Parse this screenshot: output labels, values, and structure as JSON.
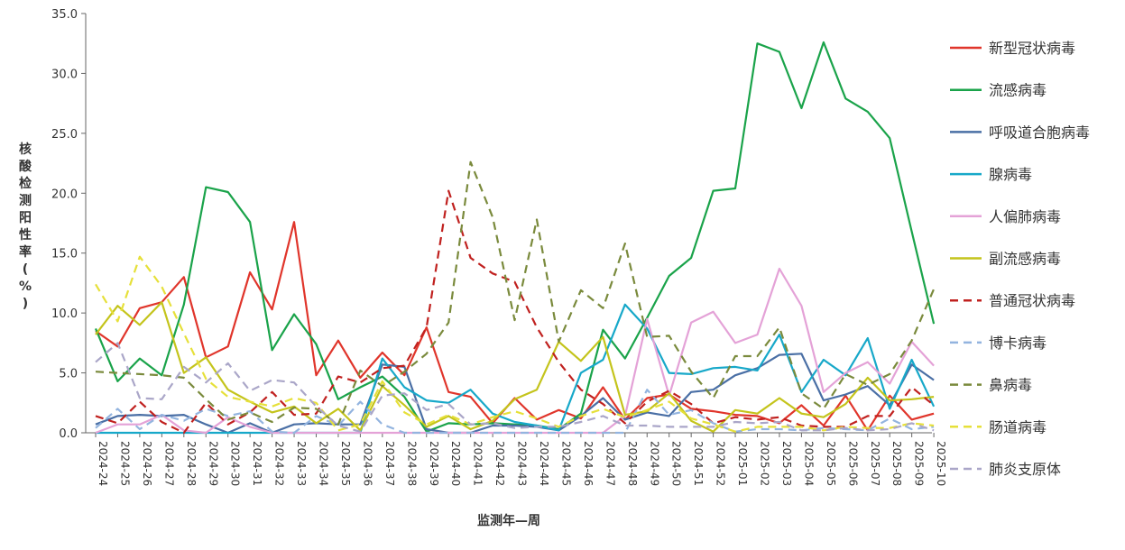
{
  "chart_data": {
    "type": "line",
    "title": "",
    "xlabel": "监测年—周",
    "ylabel": "核酸检测阳性率(%)",
    "ylim": [
      0,
      35
    ],
    "yticks": [
      "0.0",
      "5.0",
      "10.0",
      "15.0",
      "20.0",
      "25.0",
      "30.0",
      "35.0"
    ],
    "grid": false,
    "legend_position": "right",
    "categories": [
      "2024-24",
      "2024-25",
      "2024-26",
      "2024-27",
      "2024-28",
      "2024-29",
      "2024-30",
      "2024-31",
      "2024-32",
      "2024-33",
      "2024-34",
      "2024-35",
      "2024-36",
      "2024-37",
      "2024-38",
      "2024-39",
      "2024-40",
      "2024-41",
      "2024-42",
      "2024-43",
      "2024-44",
      "2024-45",
      "2024-46",
      "2024-47",
      "2024-48",
      "2024-49",
      "2024-50",
      "2024-51",
      "2024-52",
      "2025-01",
      "2025-02",
      "2025-03",
      "2025-04",
      "2025-05",
      "2025-06",
      "2025-07",
      "2025-08",
      "2025-09",
      "2025-10"
    ],
    "series": [
      {
        "name": "新型冠状病毒",
        "color": "#e0352b",
        "dash": "solid",
        "values": [
          8.5,
          7.2,
          10.4,
          10.9,
          13.0,
          6.3,
          7.2,
          13.4,
          10.3,
          17.6,
          4.8,
          7.7,
          4.6,
          6.7,
          4.8,
          8.8,
          3.4,
          3.0,
          0.8,
          2.9,
          1.1,
          1.9,
          1.2,
          3.8,
          1.1,
          2.9,
          3.2,
          2.0,
          1.8,
          1.5,
          1.4,
          0.8,
          2.3,
          0.6,
          3.1,
          0.2,
          3.1,
          1.1,
          1.6
        ]
      },
      {
        "name": "流感病毒",
        "color": "#1aa34a",
        "dash": "solid",
        "values": [
          8.7,
          4.3,
          6.2,
          4.8,
          10.7,
          20.5,
          20.1,
          17.6,
          6.9,
          9.9,
          7.4,
          2.8,
          3.8,
          4.7,
          3.0,
          0.1,
          0.8,
          0.7,
          0.8,
          0.7,
          0.6,
          0.3,
          1.6,
          8.6,
          6.2,
          9.6,
          13.1,
          14.6,
          20.2,
          20.4,
          32.5,
          31.8,
          27.1,
          32.6,
          27.9,
          26.8,
          24.6,
          16.8,
          9.1
        ]
      },
      {
        "name": "呼吸道合胞病毒",
        "color": "#4a6fa5",
        "dash": "solid",
        "values": [
          0.7,
          1.4,
          1.5,
          1.4,
          1.5,
          0.7,
          0.0,
          0.8,
          0.0,
          0.7,
          0.8,
          0.7,
          0.7,
          5.7,
          5.5,
          0.3,
          0.0,
          0.0,
          0.6,
          0.6,
          0.5,
          0.2,
          1.4,
          2.9,
          1.1,
          1.7,
          1.4,
          3.4,
          3.6,
          4.8,
          5.4,
          6.5,
          6.6,
          2.7,
          3.2,
          3.9,
          2.3,
          5.7,
          4.4
        ]
      },
      {
        "name": "腺病毒",
        "color": "#17a8c9",
        "dash": "solid",
        "values": [
          0.0,
          0.0,
          0.0,
          0.0,
          0.0,
          0.0,
          0.0,
          0.0,
          0.0,
          0.0,
          0.0,
          0.0,
          0.0,
          6.2,
          3.8,
          2.7,
          2.5,
          3.6,
          1.6,
          0.9,
          0.6,
          0.2,
          5.0,
          6.1,
          10.7,
          8.7,
          5.0,
          4.9,
          5.4,
          5.5,
          5.2,
          8.2,
          3.4,
          6.1,
          4.8,
          7.9,
          2.0,
          6.1,
          2.2
        ]
      },
      {
        "name": "人偏肺病毒",
        "color": "#e4a2d7",
        "dash": "solid",
        "values": [
          0.0,
          0.7,
          0.7,
          1.5,
          0.2,
          0.0,
          1.3,
          0.5,
          0.0,
          0.0,
          0.0,
          0.0,
          0.0,
          0.0,
          0.0,
          0.0,
          0.0,
          0.0,
          0.0,
          0.0,
          0.0,
          0.0,
          0.0,
          0.0,
          1.4,
          9.5,
          3.1,
          9.2,
          10.1,
          7.5,
          8.2,
          13.7,
          10.6,
          3.4,
          5.0,
          5.9,
          4.1,
          7.6,
          5.6
        ]
      },
      {
        "name": "副流感病毒",
        "color": "#c4c41c",
        "dash": "solid",
        "values": [
          8.2,
          10.6,
          9.0,
          10.9,
          5.0,
          6.3,
          3.6,
          2.6,
          1.7,
          2.2,
          0.8,
          2.0,
          0.2,
          3.9,
          2.3,
          0.5,
          1.4,
          0.3,
          1.0,
          2.8,
          3.6,
          7.6,
          6.0,
          8.0,
          1.5,
          1.8,
          3.3,
          1.0,
          0.1,
          1.9,
          1.6,
          2.9,
          1.6,
          1.3,
          2.4,
          4.6,
          2.7,
          2.8,
          3.0
        ]
      },
      {
        "name": "普通冠状病毒",
        "color": "#c0211f",
        "dash": "dashed",
        "values": [
          1.4,
          0.8,
          2.6,
          0.9,
          0.0,
          2.5,
          0.7,
          1.7,
          3.4,
          1.5,
          1.6,
          4.7,
          4.2,
          5.4,
          5.6,
          8.8,
          20.2,
          14.6,
          13.3,
          12.6,
          8.8,
          5.9,
          3.6,
          2.4,
          0.8,
          2.6,
          3.5,
          2.4,
          0.8,
          1.3,
          1.1,
          1.3,
          0.6,
          0.5,
          0.5,
          1.4,
          1.4,
          3.8,
          2.3
        ]
      },
      {
        "name": "博卡病毒",
        "color": "#93b4df",
        "dash": "dashed",
        "values": [
          0.4,
          2.0,
          0.3,
          1.5,
          1.0,
          2.0,
          1.4,
          1.8,
          0.1,
          0.0,
          1.4,
          0.6,
          2.6,
          0.7,
          0.0,
          0.0,
          0.0,
          0.0,
          0.0,
          0.0,
          0.0,
          0.0,
          0.0,
          0.0,
          0.0,
          3.6,
          1.5,
          1.9,
          0.8,
          0.1,
          0.3,
          0.3,
          0.2,
          0.4,
          0.3,
          0.2,
          1.2,
          0.3,
          0.5
        ]
      },
      {
        "name": "鼻病毒",
        "color": "#7a8a3c",
        "dash": "dashed",
        "values": [
          5.1,
          5.0,
          4.9,
          4.8,
          4.6,
          2.8,
          1.1,
          1.7,
          0.9,
          2.1,
          2.0,
          0.7,
          5.2,
          3.9,
          5.1,
          6.6,
          9.2,
          22.6,
          18.0,
          9.4,
          17.8,
          7.6,
          11.9,
          10.4,
          15.8,
          8.0,
          8.1,
          5.1,
          2.9,
          6.4,
          6.4,
          8.8,
          3.3,
          2.0,
          4.9,
          4.0,
          4.9,
          7.7,
          12.0
        ]
      },
      {
        "name": "肠道病毒",
        "color": "#e6e03a",
        "dash": "dashed",
        "values": [
          12.4,
          9.3,
          14.7,
          12.2,
          8.3,
          4.5,
          3.0,
          2.6,
          2.2,
          2.9,
          2.5,
          0.2,
          0.7,
          4.3,
          1.7,
          0.7,
          1.5,
          0.7,
          1.3,
          1.8,
          1.2,
          0.5,
          1.4,
          2.0,
          1.3,
          1.9,
          2.6,
          1.2,
          0.7,
          0.1,
          0.5,
          0.5,
          0.5,
          0.2,
          0.5,
          0.4,
          0.4,
          0.8,
          0.6
        ]
      },
      {
        "name": "肺炎支原体",
        "color": "#aaa6c8",
        "dash": "dashed",
        "values": [
          5.9,
          7.5,
          2.9,
          2.8,
          5.5,
          4.2,
          5.8,
          3.5,
          4.4,
          4.2,
          2.2,
          0.6,
          0.1,
          3.1,
          3.3,
          1.9,
          2.4,
          0.7,
          0.8,
          0.4,
          0.5,
          0.5,
          0.9,
          1.4,
          0.6,
          0.6,
          0.5,
          0.5,
          0.5,
          0.9,
          0.8,
          0.9,
          0.2,
          0.2,
          0.4,
          0.2,
          0.3,
          0.8,
          0.2
        ]
      }
    ]
  }
}
